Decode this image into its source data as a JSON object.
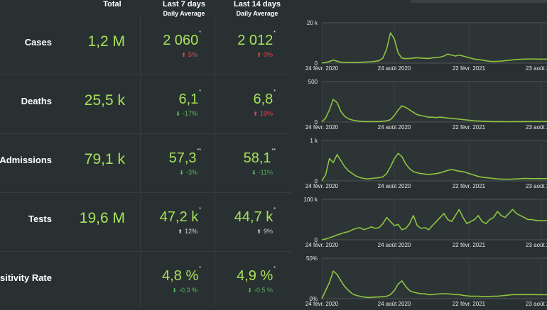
{
  "header": {
    "total": "Total",
    "last7": "Last 7 days",
    "last7_sub": "Daily Average",
    "last14": "Last 14 days",
    "last14_sub": "Daily Average"
  },
  "x_tick_labels": [
    "24 févr. 2020",
    "24 août 2020",
    "22 févr. 2021",
    "23 août 2"
  ],
  "rows": [
    {
      "label": "Cases",
      "total": "1,2 M",
      "d7": "2 060",
      "d7_mark": "*",
      "d7_change": "5%",
      "d7_arrow": "⬆",
      "d7_dir": "up",
      "d14": "2 012",
      "d14_mark": "*",
      "d14_change": "0%",
      "d14_arrow": "⬆",
      "d14_dir": "up",
      "y_top": "20 k",
      "y_bottom": "0"
    },
    {
      "label": "Deaths",
      "total": "25,5 k",
      "d7": "6,1",
      "d7_mark": "*",
      "d7_change": "-17%",
      "d7_arrow": "⬇",
      "d7_dir": "down",
      "d14": "6,8",
      "d14_mark": "*",
      "d14_change": "19%",
      "d14_arrow": "⬆",
      "d14_dir": "up",
      "y_top": "500",
      "y_bottom": "0"
    },
    {
      "label": "al Admissions",
      "total": "79,1 k",
      "d7": "57,3",
      "d7_mark": "**",
      "d7_change": "-3%",
      "d7_arrow": "⬇",
      "d7_dir": "down",
      "d14": "58,1",
      "d14_mark": "**",
      "d14_change": "-11%",
      "d14_arrow": "⬇",
      "d14_dir": "down",
      "y_top": "1 k",
      "y_bottom": "0"
    },
    {
      "label": "Tests",
      "total": "19,6 M",
      "d7": "47,2 k",
      "d7_mark": "*",
      "d7_change": "12%",
      "d7_arrow": "⬆",
      "d7_dir": "neutral",
      "d14": "44,7 k",
      "d14_mark": "*",
      "d14_change": "9%",
      "d14_arrow": "⬆",
      "d14_dir": "neutral",
      "y_top": "100 k",
      "y_bottom": "0"
    },
    {
      "label": "ositivity Rate",
      "total": "",
      "d7": "4,8 %",
      "d7_mark": "*",
      "d7_change": "-0,3 %",
      "d7_arrow": "⬇",
      "d7_dir": "down",
      "d14": "4,9 %",
      "d14_mark": "*",
      "d14_change": "-0,5 %",
      "d14_arrow": "⬇",
      "d14_dir": "down",
      "y_top": "50%",
      "y_bottom": "0%"
    }
  ],
  "colors": {
    "background": "#293032",
    "value_green": "#a6e25a",
    "line_green": "#8cc63f",
    "increase_red": "#e5484d",
    "decrease_green": "#5bb85f"
  },
  "chart_data": [
    {
      "type": "line",
      "title": "Cases",
      "ylim": [
        0,
        20000
      ],
      "x_ticks": [
        "24 févr. 2020",
        "24 août 2020",
        "22 févr. 2021",
        "23 août 2"
      ],
      "series": [
        {
          "values": [
            0,
            300,
            800,
            1500,
            1000,
            500,
            300,
            300,
            400,
            300,
            400,
            500,
            600,
            700,
            900,
            1200,
            2500,
            7000,
            15000,
            12000,
            5000,
            2500,
            2200,
            2300,
            2500,
            2700,
            2500,
            2400,
            2300,
            2600,
            2800,
            3000,
            3500,
            4500,
            4000,
            3500,
            4000,
            3500,
            3000,
            2500,
            2000,
            1800,
            1500,
            1200,
            900,
            800,
            900,
            1000,
            1200,
            1400,
            1600,
            1800,
            1900,
            2000,
            2000,
            2100,
            2000,
            2000,
            2000,
            2000
          ]
        }
      ]
    },
    {
      "type": "line",
      "title": "Deaths",
      "ylim": [
        0,
        500
      ],
      "x_ticks": [
        "24 févr. 2020",
        "24 août 2020",
        "22 févr. 2021",
        "23 août 2"
      ],
      "series": [
        {
          "values": [
            0,
            50,
            150,
            280,
            240,
            130,
            70,
            40,
            25,
            15,
            10,
            5,
            5,
            5,
            5,
            5,
            8,
            15,
            30,
            80,
            150,
            200,
            180,
            150,
            120,
            90,
            80,
            70,
            60,
            60,
            55,
            60,
            55,
            50,
            45,
            40,
            35,
            30,
            25,
            20,
            15,
            12,
            10,
            8,
            6,
            5,
            5,
            5,
            4,
            4,
            4,
            5,
            5,
            5,
            6,
            6,
            6,
            6,
            6,
            6
          ]
        }
      ]
    },
    {
      "type": "line",
      "title": "Hospital Admissions",
      "ylim": [
        0,
        1000
      ],
      "x_ticks": [
        "24 févr. 2020",
        "24 août 2020",
        "22 févr. 2021",
        "23 août 2"
      ],
      "series": [
        {
          "values": [
            0,
            150,
            550,
            450,
            650,
            500,
            350,
            250,
            180,
            120,
            80,
            60,
            50,
            60,
            70,
            80,
            100,
            180,
            350,
            550,
            680,
            600,
            420,
            300,
            230,
            200,
            180,
            170,
            160,
            170,
            180,
            200,
            230,
            260,
            280,
            260,
            240,
            230,
            200,
            170,
            140,
            110,
            90,
            80,
            70,
            60,
            50,
            45,
            40,
            40,
            45,
            50,
            55,
            60,
            58,
            57,
            57,
            58,
            57,
            57
          ]
        }
      ]
    },
    {
      "type": "line",
      "title": "Tests",
      "ylim": [
        0,
        100000
      ],
      "x_ticks": [
        "24 févr. 2020",
        "24 août 2020",
        "22 févr. 2021",
        "23 août 2"
      ],
      "series": [
        {
          "values": [
            0,
            2000,
            5000,
            8000,
            12000,
            15000,
            18000,
            20000,
            25000,
            28000,
            30000,
            25000,
            28000,
            32000,
            28000,
            30000,
            40000,
            55000,
            45000,
            35000,
            38000,
            25000,
            28000,
            40000,
            60000,
            35000,
            28000,
            30000,
            25000,
            35000,
            45000,
            55000,
            65000,
            50000,
            45000,
            60000,
            75000,
            55000,
            40000,
            45000,
            50000,
            60000,
            45000,
            40000,
            50000,
            55000,
            70000,
            60000,
            55000,
            65000,
            75000,
            65000,
            60000,
            55000,
            50000,
            50000,
            48000,
            47000,
            47000,
            47000
          ]
        }
      ]
    },
    {
      "type": "line",
      "title": "Positivity Rate",
      "ylim": [
        0,
        50
      ],
      "x_ticks": [
        "24 févr. 2020",
        "24 août 2020",
        "22 févr. 2021",
        "23 août 2"
      ],
      "series": [
        {
          "values": [
            0,
            10,
            20,
            34,
            30,
            22,
            15,
            10,
            6,
            4,
            3,
            2,
            1.5,
            1.5,
            2,
            2,
            2.5,
            3,
            5,
            10,
            18,
            22,
            15,
            10,
            8,
            7,
            6,
            6,
            5,
            5,
            5.5,
            6,
            6,
            6,
            5.5,
            5,
            5,
            4,
            3.5,
            3,
            3,
            3,
            2.5,
            2.5,
            2.5,
            3,
            3,
            3.5,
            4,
            4.5,
            5,
            5,
            5,
            5,
            5,
            5,
            5,
            4.9,
            4.8,
            4.8
          ]
        }
      ]
    }
  ]
}
